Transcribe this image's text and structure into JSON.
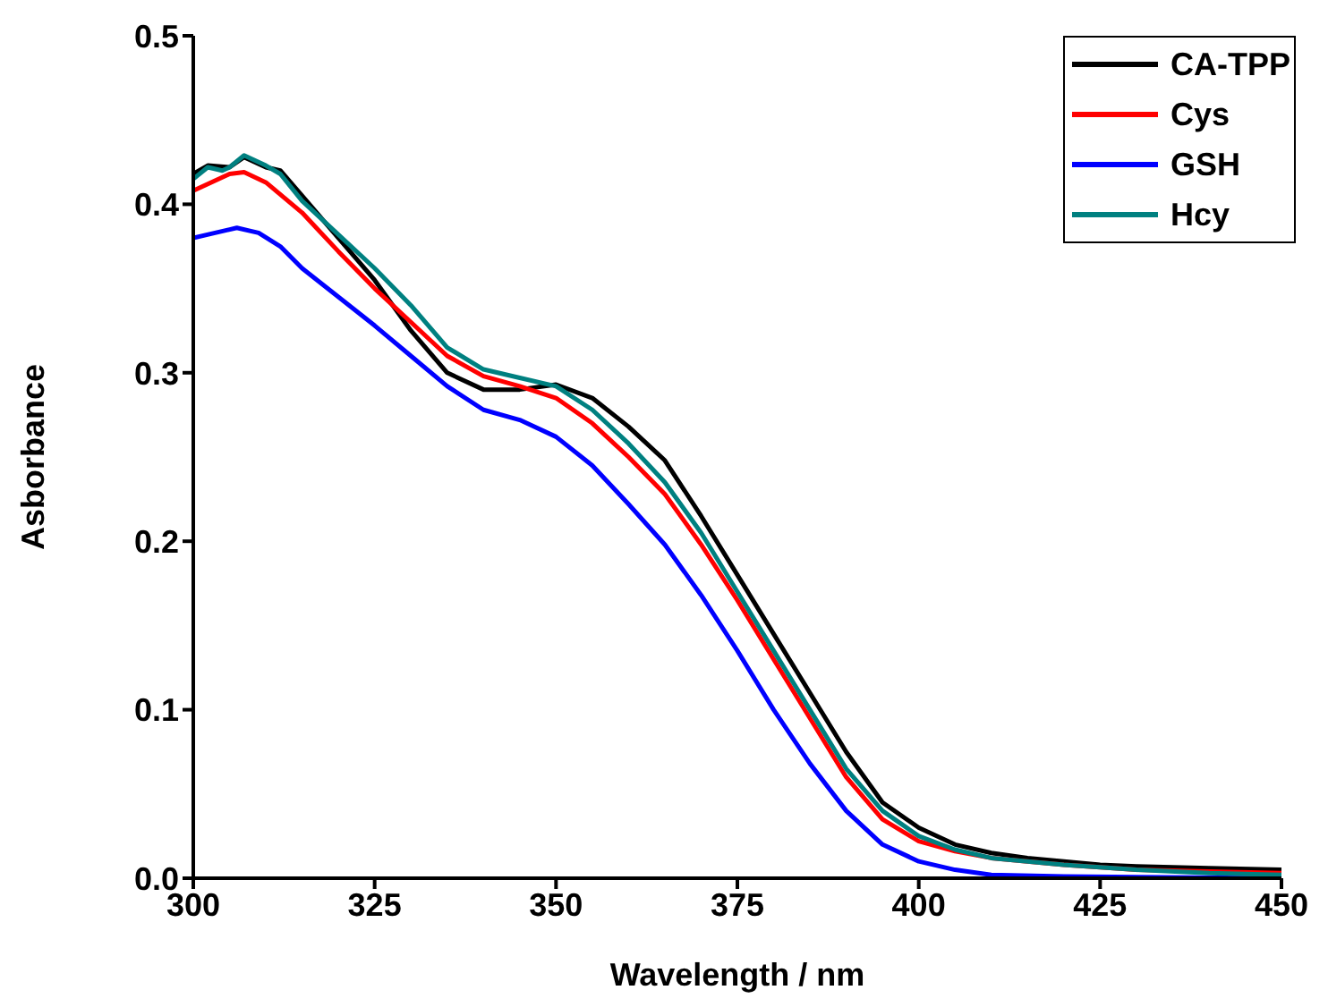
{
  "chart_data": {
    "type": "line",
    "xlabel": "Wavelength / nm",
    "ylabel": "Asborbance",
    "xlim": [
      300,
      450
    ],
    "xticks": [
      300,
      325,
      350,
      375,
      400,
      425,
      450
    ],
    "ylim": [
      0,
      0.5
    ],
    "yticks": [
      {
        "value": 0,
        "label": "0.0"
      },
      0.1,
      0.2,
      0.3,
      0.4,
      0.5
    ],
    "legend": "top right",
    "marker": "none",
    "line_style": "solid",
    "series": [
      {
        "name": "CA-TPP",
        "color": "#000000",
        "x": [
          300,
          302,
          305,
          307,
          310,
          312,
          315,
          320,
          325,
          330,
          335,
          340,
          345,
          350,
          355,
          360,
          365,
          370,
          375,
          380,
          385,
          390,
          395,
          400,
          405,
          410,
          415,
          420,
          425,
          430,
          440,
          450
        ],
        "values": [
          0.418,
          0.423,
          0.422,
          0.428,
          0.422,
          0.42,
          0.405,
          0.38,
          0.355,
          0.325,
          0.3,
          0.29,
          0.29,
          0.293,
          0.285,
          0.268,
          0.248,
          0.215,
          0.18,
          0.145,
          0.11,
          0.075,
          0.045,
          0.03,
          0.02,
          0.015,
          0.012,
          0.01,
          0.008,
          0.007,
          0.006,
          0.005
        ]
      },
      {
        "name": "Cys",
        "color": "#ff0000",
        "x": [
          300,
          305,
          307,
          310,
          315,
          320,
          325,
          330,
          335,
          340,
          345,
          350,
          355,
          360,
          365,
          370,
          375,
          380,
          385,
          390,
          395,
          400,
          405,
          410,
          420,
          430,
          440,
          450
        ],
        "values": [
          0.408,
          0.418,
          0.419,
          0.413,
          0.395,
          0.372,
          0.35,
          0.33,
          0.31,
          0.298,
          0.292,
          0.285,
          0.27,
          0.25,
          0.228,
          0.198,
          0.165,
          0.13,
          0.095,
          0.06,
          0.035,
          0.022,
          0.016,
          0.012,
          0.008,
          0.005,
          0.004,
          0.003
        ]
      },
      {
        "name": "GSH",
        "color": "#0000ff",
        "x": [
          300,
          303,
          306,
          309,
          312,
          315,
          320,
          325,
          330,
          335,
          340,
          345,
          350,
          355,
          360,
          365,
          370,
          375,
          380,
          385,
          390,
          395,
          400,
          405,
          410,
          420,
          450
        ],
        "values": [
          0.38,
          0.383,
          0.386,
          0.383,
          0.375,
          0.362,
          0.345,
          0.328,
          0.31,
          0.292,
          0.278,
          0.272,
          0.262,
          0.245,
          0.222,
          0.198,
          0.168,
          0.135,
          0.1,
          0.068,
          0.04,
          0.02,
          0.01,
          0.005,
          0.002,
          0.001,
          0.0
        ]
      },
      {
        "name": "Hcy",
        "color": "#008080",
        "x": [
          300,
          302,
          304,
          305,
          307,
          310,
          312,
          315,
          320,
          325,
          330,
          335,
          340,
          345,
          350,
          355,
          360,
          365,
          370,
          375,
          380,
          385,
          390,
          395,
          400,
          405,
          410,
          420,
          430,
          440,
          450
        ],
        "values": [
          0.415,
          0.422,
          0.42,
          0.422,
          0.429,
          0.423,
          0.418,
          0.402,
          0.382,
          0.362,
          0.34,
          0.315,
          0.302,
          0.297,
          0.292,
          0.278,
          0.258,
          0.235,
          0.205,
          0.17,
          0.135,
          0.1,
          0.065,
          0.04,
          0.025,
          0.017,
          0.012,
          0.008,
          0.005,
          0.003,
          0.002
        ]
      }
    ]
  }
}
